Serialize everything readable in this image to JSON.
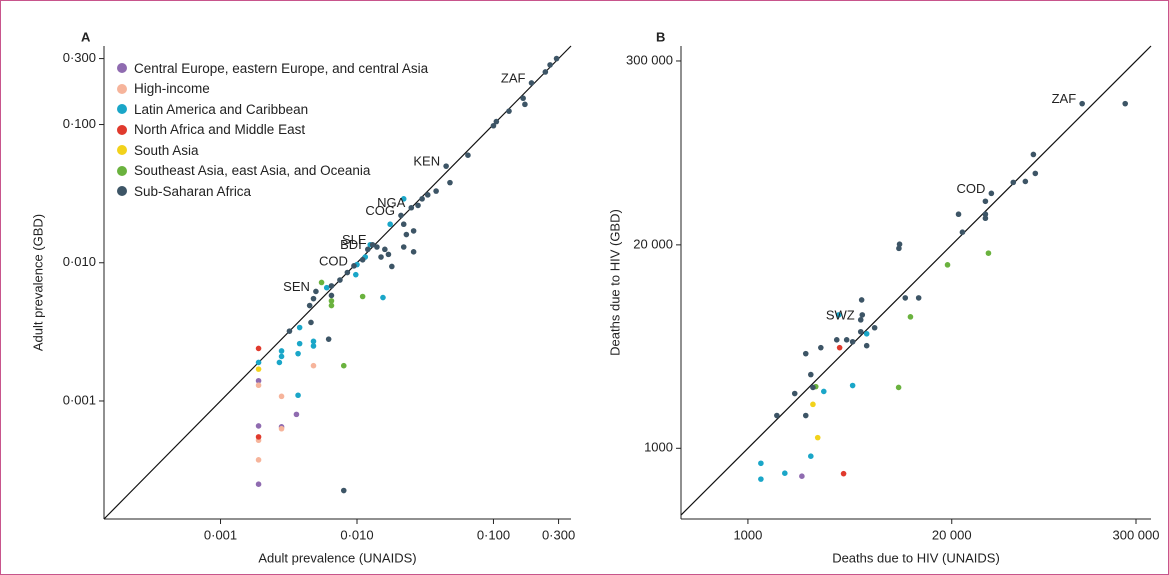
{
  "chart_data": [
    {
      "type": "scatter",
      "title": "A",
      "xlabel": "Adult prevalence (UNAIDS)",
      "ylabel": "Adult prevalence (GBD)",
      "log_x": true,
      "log_y": true,
      "identity_line": true,
      "legend": true,
      "xlim": [
        0.00014,
        0.37
      ],
      "ylim": [
        0.00014,
        0.37
      ],
      "xticks": [
        {
          "value": 0.001,
          "label": "0·001"
        },
        {
          "value": 0.01,
          "label": "0·010"
        },
        {
          "value": 0.1,
          "label": "0·100"
        },
        {
          "value": 0.3,
          "label": "0·300"
        }
      ],
      "yticks": [
        {
          "value": 0.001,
          "label": "0·001"
        },
        {
          "value": 0.01,
          "label": "0·010"
        },
        {
          "value": 0.1,
          "label": "0·100"
        },
        {
          "value": 0.3,
          "label": "0·300"
        }
      ],
      "series": [
        {
          "name": "Central Europe, eastern Europe, and central Asia",
          "color": "#8f6bb0",
          "x": [
            0.0019,
            0.0019,
            0.0019,
            0.0028,
            0.0036
          ],
          "y": [
            0.0014,
            0.00066,
            0.00025,
            0.00065,
            0.0008
          ]
        },
        {
          "name": "High-income",
          "color": "#f6b49b",
          "x": [
            0.0019,
            0.0019,
            0.0019,
            0.0028,
            0.0028,
            0.0048
          ],
          "y": [
            0.0013,
            0.00052,
            0.000375,
            0.00108,
            0.00063,
            0.0018
          ]
        },
        {
          "name": "Latin America and Caribbean",
          "color": "#1aa6c8",
          "x": [
            0.0019,
            0.0028,
            0.0028,
            0.0027,
            0.0038,
            0.0038,
            0.0037,
            0.0037,
            0.0048,
            0.0048,
            0.006,
            0.0098,
            0.01,
            0.0115,
            0.0155,
            0.0175,
            0.022,
            0.0125
          ],
          "y": [
            0.0019,
            0.0021,
            0.0023,
            0.0019,
            0.0034,
            0.0026,
            0.0022,
            0.0011,
            0.0025,
            0.0027,
            0.0066,
            0.0082,
            0.0097,
            0.011,
            0.0056,
            0.019,
            0.029,
            0.0135
          ]
        },
        {
          "name": "North Africa and Middle East",
          "color": "#e03a2d",
          "x": [
            0.0019,
            0.0019
          ],
          "y": [
            0.0024,
            0.00055
          ]
        },
        {
          "name": "South Asia",
          "color": "#f2d21b",
          "x": [
            0.0019
          ],
          "y": [
            0.0017
          ]
        },
        {
          "name": "Southeast Asia, east Asia, and Oceania",
          "color": "#6ab23e",
          "x": [
            0.0055,
            0.0065,
            0.0065,
            0.008,
            0.011
          ],
          "y": [
            0.0072,
            0.0053,
            0.0049,
            0.0018,
            0.0057
          ]
        },
        {
          "name": "Sub-Saharan Africa",
          "color": "#3d5566",
          "x": [
            0.29,
            0.26,
            0.24,
            0.19,
            0.17,
            0.165,
            0.13,
            0.105,
            0.1,
            0.065,
            0.045,
            0.048,
            0.038,
            0.033,
            0.03,
            0.028,
            0.025,
            0.021,
            0.022,
            0.026,
            0.023,
            0.022,
            0.026,
            0.017,
            0.015,
            0.016,
            0.014,
            0.013,
            0.012,
            0.011,
            0.0095,
            0.018,
            0.0085,
            0.0075,
            0.0065,
            0.005,
            0.0048,
            0.0065,
            0.0045,
            0.0032,
            0.0046,
            0.0062,
            0.008
          ],
          "y": [
            0.3,
            0.27,
            0.24,
            0.2,
            0.14,
            0.155,
            0.125,
            0.105,
            0.098,
            0.06,
            0.05,
            0.038,
            0.033,
            0.031,
            0.029,
            0.026,
            0.025,
            0.022,
            0.019,
            0.017,
            0.016,
            0.013,
            0.012,
            0.0115,
            0.011,
            0.0125,
            0.013,
            0.0135,
            0.0125,
            0.0105,
            0.0095,
            0.0094,
            0.0085,
            0.0075,
            0.0058,
            0.0062,
            0.0055,
            0.0068,
            0.0049,
            0.0032,
            0.0037,
            0.0028,
            0.000225
          ],
          "labels": [
            null,
            null,
            null,
            "ZAF",
            null,
            null,
            null,
            null,
            null,
            null,
            "KEN",
            null,
            null,
            null,
            null,
            null,
            "NGA",
            "COG",
            null,
            null,
            null,
            null,
            null,
            null,
            null,
            null,
            null,
            "SLE",
            "BDI",
            null,
            "COD",
            null,
            null,
            null,
            null,
            "SEN",
            null,
            null,
            null,
            null,
            null,
            null,
            null
          ]
        }
      ]
    },
    {
      "type": "scatter",
      "title": "B",
      "xlabel": "Deaths due to HIV (UNAIDS)",
      "ylabel": "Deaths due to HIV (GBD)",
      "log_x": true,
      "log_y": true,
      "identity_line": true,
      "legend": false,
      "xlim": [
        374,
        374000
      ],
      "ylim": [
        353,
        374000
      ],
      "xticks": [
        1000,
        {
          "value": 20000,
          "label": "20 000"
        },
        {
          "value": 300000,
          "label": "300 000"
        }
      ],
      "yticks": [
        1000,
        {
          "value": 20000,
          "label": "20 000"
        },
        {
          "value": 300000,
          "label": "300 000"
        }
      ],
      "series": [
        {
          "color": "#8f6bb0",
          "x": [
            2210
          ],
          "y": [
            663
          ]
        },
        {
          "color": "#1aa6c8",
          "x": [
            3800,
            5730,
            4660,
            3050,
            2520,
            1720,
            1210,
            1210
          ],
          "y": [
            7130,
            5400,
            2520,
            2310,
            890,
            693,
            802,
            635
          ]
        },
        {
          "color": "#e03a2d",
          "x": [
            3850,
            4080
          ],
          "y": [
            4400,
            688
          ]
        },
        {
          "color": "#f2d21b",
          "x": [
            2600,
            2790
          ],
          "y": [
            1910,
            1170
          ]
        },
        {
          "color": "#6ab23e",
          "x": [
            34300,
            18800,
            10900,
            9160,
            2710
          ],
          "y": [
            17700,
            14900,
            6930,
            2450,
            2480
          ]
        },
        {
          "color": "#3d5566",
          "x": [
            256000,
            136000,
            66400,
            68300,
            59000,
            49400,
            35800,
            32800,
            32800,
            22100,
            32800,
            23400,
            9290,
            9200,
            12300,
            10100,
            5320,
            5250,
            6440,
            5250,
            5370,
            4270,
            4660,
            5730,
            3690,
            2920,
            2340,
            2520,
            2600,
            1990,
            1530,
            2340
          ],
          "y": [
            160000,
            160000,
            75700,
            57300,
            50900,
            50200,
            42700,
            38000,
            31400,
            31400,
            29600,
            24100,
            20200,
            19000,
            9160,
            9160,
            8890,
            6630,
            5900,
            5560,
            7130,
            4940,
            4800,
            4530,
            4940,
            4400,
            4030,
            2960,
            2450,
            2240,
            1620,
            1620
          ],
          "labels": [
            null,
            "ZAF",
            null,
            null,
            null,
            null,
            "COD",
            null,
            null,
            null,
            null,
            null,
            null,
            null,
            null,
            null,
            null,
            "SWZ",
            null,
            null,
            null,
            null,
            null,
            null,
            null,
            null,
            null,
            null,
            null,
            null,
            null,
            null
          ]
        }
      ]
    }
  ]
}
